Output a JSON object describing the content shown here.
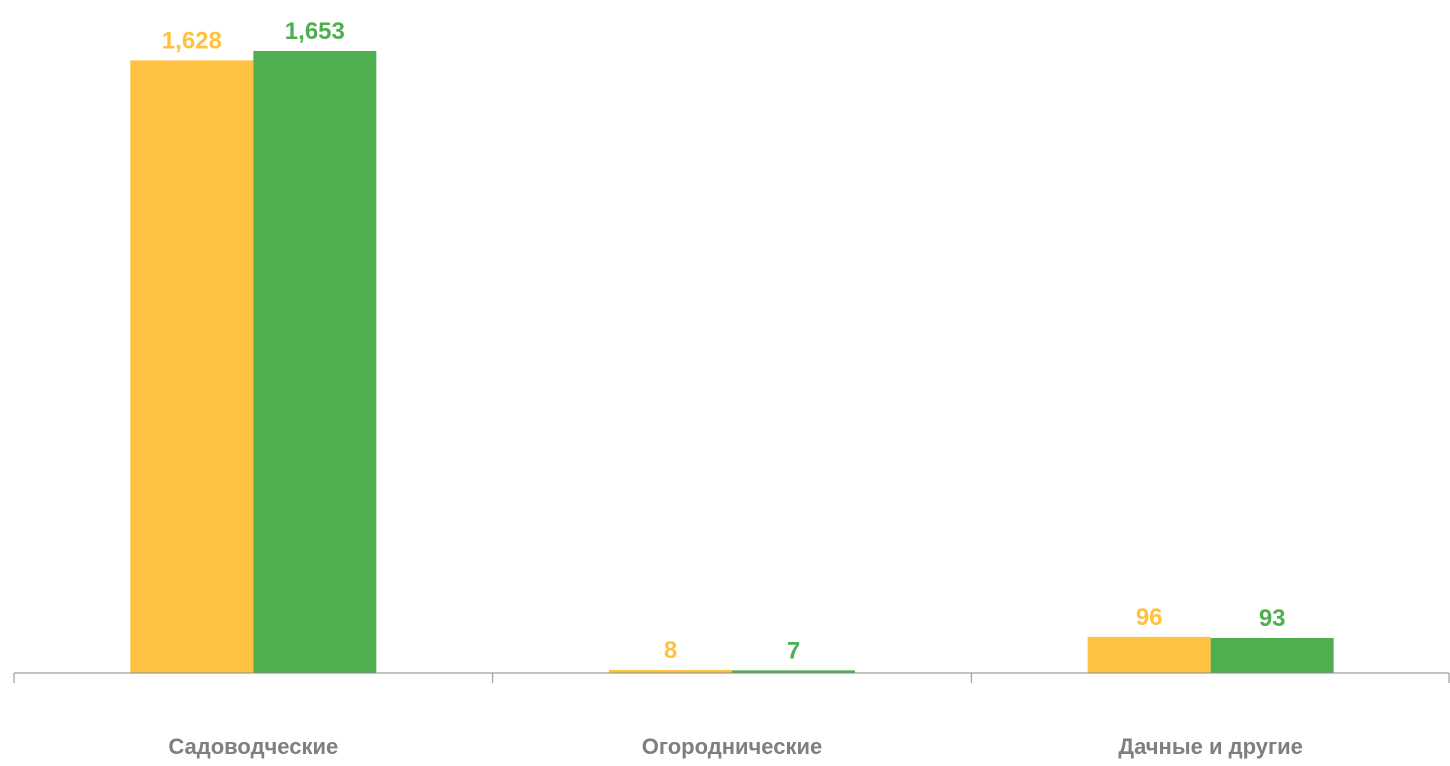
{
  "colors": {
    "series_a": "#fec240",
    "series_b": "#4faf50",
    "axis": "#8a8a8a",
    "category_text": "#7f7f7f"
  },
  "chart_data": {
    "type": "bar",
    "title": "",
    "xlabel": "",
    "ylabel": "",
    "categories": [
      "Садоводческие",
      "Огороднические",
      "Дачные и другие"
    ],
    "series": [
      {
        "values": [
          1628,
          8,
          96
        ],
        "labels": [
          "1,628",
          "8",
          "96"
        ],
        "color": "#fec240"
      },
      {
        "values": [
          1653,
          7,
          93
        ],
        "labels": [
          "1,653",
          "7",
          "93"
        ],
        "color": "#4faf50"
      }
    ],
    "ylim": [
      0,
      1653
    ],
    "grid": false,
    "legend": "none",
    "data_labels": true
  }
}
